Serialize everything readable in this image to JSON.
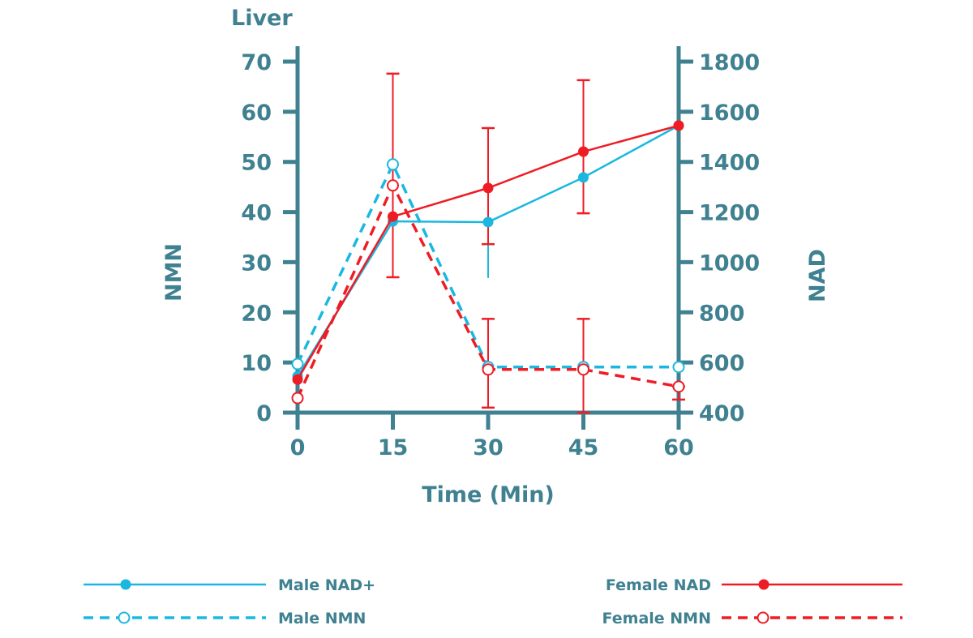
{
  "chart_data": {
    "type": "line",
    "title": "Liver",
    "xlabel": "Time (Min)",
    "ylabel_left": "NMN",
    "ylabel_right": "NAD",
    "x": [
      0,
      15,
      30,
      45,
      60
    ],
    "x_ticks": [
      "0",
      "15",
      "30",
      "45",
      "60"
    ],
    "ylim_left": [
      0,
      70
    ],
    "ylim_right": [
      400,
      1800
    ],
    "y_ticks_left": [
      "0",
      "10",
      "20",
      "30",
      "40",
      "50",
      "60",
      "70"
    ],
    "y_ticks_right": [
      "400",
      "600",
      "800",
      "1000",
      "1200",
      "1400",
      "1600",
      "1800"
    ],
    "grid": false,
    "legend_position": "bottom",
    "axis_color": "#3f8190",
    "series": [
      {
        "name": "Male NAD+",
        "axis": "right",
        "color": "#1ab8e0",
        "style": "solid",
        "marker": "filled",
        "values": [
          545,
          1163,
          1160,
          1338,
          1545
        ],
        "errors": [
          null,
          null,
          [
            937,
            1160
          ],
          null,
          null
        ]
      },
      {
        "name": "Male NMN",
        "axis": "left",
        "color": "#1ab8e0",
        "style": "dashed",
        "marker": "open",
        "values": [
          9.7,
          49.5,
          9.1,
          9.1,
          9.1
        ],
        "errors": [
          null,
          null,
          null,
          null,
          null
        ]
      },
      {
        "name": "Female NAD",
        "axis": "right",
        "color": "#ee1c25",
        "style": "solid",
        "marker": "filled",
        "values": [
          532,
          1182,
          1296,
          1441,
          1545
        ],
        "errors": [
          null,
          null,
          [
            1072,
            1535
          ],
          [
            1195,
            1726
          ],
          null
        ]
      },
      {
        "name": "Female NMN",
        "axis": "left",
        "color": "#ee1c25",
        "style": "dashed",
        "marker": "open",
        "values": [
          2.9,
          45.3,
          8.6,
          8.6,
          5.2
        ],
        "errors": [
          null,
          [
            27.0,
            67.6
          ],
          [
            1.0,
            18.7
          ],
          [
            0,
            18.7
          ],
          [
            2.6,
            5.2
          ]
        ]
      }
    ]
  }
}
